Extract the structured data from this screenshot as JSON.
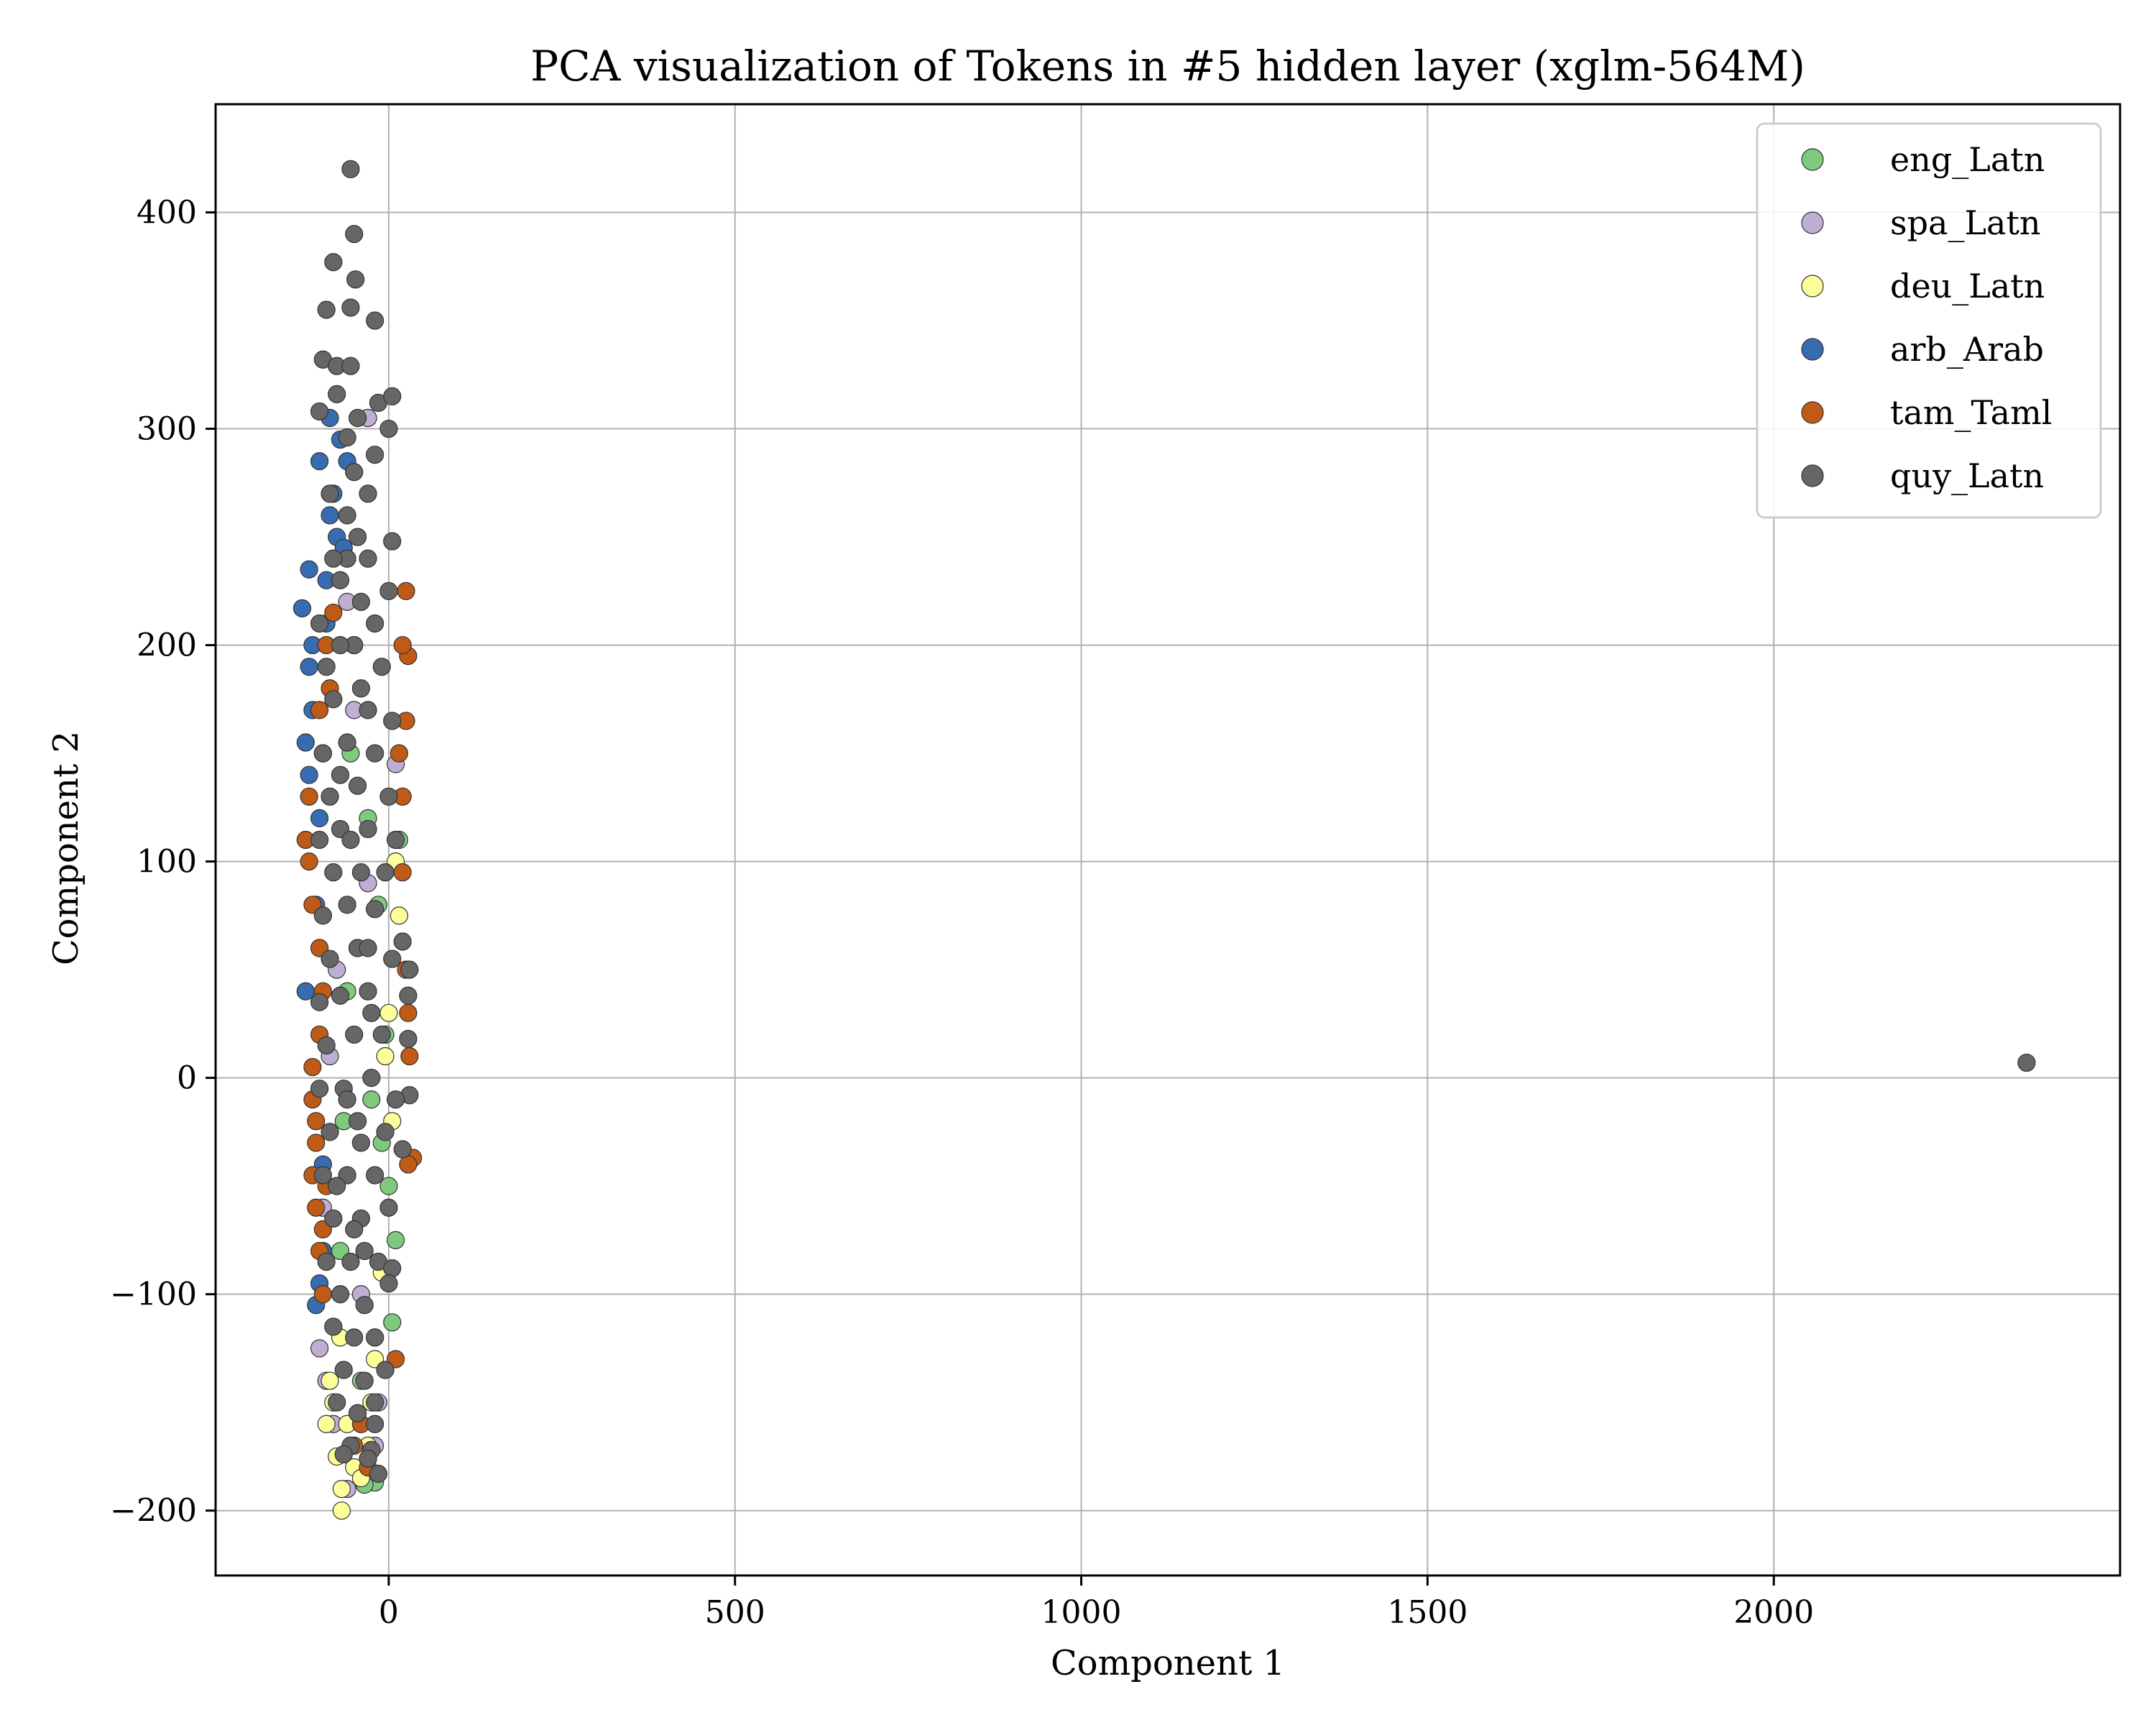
{
  "chart_data": {
    "type": "scatter",
    "title": "PCA visualization of Tokens in #5 hidden layer (xglm-564M)",
    "xlabel": "Component 1",
    "ylabel": "Component 2",
    "xlim": [
      -250,
      2500
    ],
    "ylim": [
      -230,
      450
    ],
    "x_ticks": [
      0,
      500,
      1000,
      1500,
      2000
    ],
    "y_ticks": [
      -200,
      -100,
      0,
      100,
      200,
      300,
      400
    ],
    "x_tick_labels": [
      "0",
      "500",
      "1000",
      "1500",
      "2000"
    ],
    "y_tick_labels": [
      "−200",
      "−100",
      "0",
      "100",
      "200",
      "300",
      "400"
    ],
    "grid": true,
    "legend_position": "top-right",
    "series": [
      {
        "name": "eng_Latn",
        "color": "#7fc97f",
        "points": [
          [
            -40,
            -140
          ],
          [
            -20,
            -187
          ],
          [
            -35,
            -188
          ],
          [
            5,
            -113
          ],
          [
            15,
            110
          ],
          [
            10,
            -75
          ],
          [
            0,
            -50
          ],
          [
            -10,
            -30
          ],
          [
            -60,
            40
          ],
          [
            -30,
            120
          ],
          [
            -50,
            200
          ],
          [
            -70,
            -80
          ],
          [
            -25,
            -10
          ],
          [
            -45,
            60
          ],
          [
            -5,
            20
          ],
          [
            -30,
            305
          ],
          [
            -55,
            150
          ],
          [
            -20,
            -120
          ],
          [
            -65,
            -20
          ],
          [
            -15,
            80
          ]
        ]
      },
      {
        "name": "spa_Latn",
        "color": "#beaed4",
        "points": [
          [
            -100,
            -125
          ],
          [
            -80,
            -160
          ],
          [
            -60,
            -190
          ],
          [
            10,
            145
          ],
          [
            -30,
            305
          ],
          [
            -90,
            -140
          ],
          [
            -20,
            -170
          ],
          [
            -75,
            50
          ],
          [
            -40,
            -100
          ],
          [
            -50,
            170
          ],
          [
            -85,
            10
          ],
          [
            -15,
            -150
          ],
          [
            -95,
            -60
          ],
          [
            -30,
            90
          ],
          [
            -60,
            220
          ]
        ]
      },
      {
        "name": "deu_Latn",
        "color": "#fdfd99",
        "points": [
          [
            -68,
            -200
          ],
          [
            -68,
            -190
          ],
          [
            -75,
            -175
          ],
          [
            -80,
            -150
          ],
          [
            -50,
            -180
          ],
          [
            -30,
            -170
          ],
          [
            -90,
            -160
          ],
          [
            15,
            75
          ],
          [
            10,
            100
          ],
          [
            -20,
            -130
          ],
          [
            -60,
            -160
          ],
          [
            -85,
            -140
          ],
          [
            -40,
            -185
          ],
          [
            -25,
            -150
          ],
          [
            0,
            30
          ],
          [
            -10,
            -90
          ],
          [
            -70,
            -120
          ],
          [
            -55,
            -170
          ],
          [
            -5,
            10
          ],
          [
            5,
            -20
          ]
        ]
      },
      {
        "name": "arb_Arab",
        "color": "#386cb0",
        "points": [
          [
            -125,
            217
          ],
          [
            -115,
            235
          ],
          [
            -100,
            285
          ],
          [
            -85,
            305
          ],
          [
            -70,
            295
          ],
          [
            -110,
            200
          ],
          [
            -120,
            155
          ],
          [
            -105,
            -105
          ],
          [
            -95,
            -80
          ],
          [
            -60,
            285
          ],
          [
            -80,
            270
          ],
          [
            -115,
            190
          ],
          [
            -100,
            120
          ],
          [
            -90,
            230
          ],
          [
            -75,
            250
          ],
          [
            -110,
            170
          ],
          [
            -95,
            -40
          ],
          [
            -120,
            40
          ],
          [
            -105,
            80
          ],
          [
            -85,
            260
          ],
          [
            -65,
            245
          ],
          [
            -100,
            -95
          ],
          [
            -115,
            140
          ],
          [
            -90,
            210
          ],
          [
            -100,
            60
          ]
        ]
      },
      {
        "name": "tam_Taml",
        "color": "#bf5b17",
        "points": [
          [
            -115,
            130
          ],
          [
            -120,
            110
          ],
          [
            -115,
            100
          ],
          [
            -110,
            -10
          ],
          [
            -105,
            -20
          ],
          [
            -110,
            -45
          ],
          [
            -105,
            -60
          ],
          [
            -100,
            -80
          ],
          [
            -95,
            -100
          ],
          [
            -100,
            20
          ],
          [
            -95,
            40
          ],
          [
            -90,
            200
          ],
          [
            -80,
            215
          ],
          [
            25,
            225
          ],
          [
            28,
            195
          ],
          [
            25,
            165
          ],
          [
            20,
            130
          ],
          [
            20,
            95
          ],
          [
            28,
            30
          ],
          [
            30,
            10
          ],
          [
            35,
            -37
          ],
          [
            28,
            -40
          ],
          [
            -40,
            -160
          ],
          [
            -50,
            -170
          ],
          [
            -30,
            -180
          ],
          [
            -45,
            -155
          ],
          [
            -100,
            60
          ],
          [
            -110,
            80
          ],
          [
            -95,
            150
          ],
          [
            -85,
            180
          ],
          [
            -105,
            -30
          ],
          [
            -95,
            -70
          ],
          [
            20,
            200
          ],
          [
            15,
            150
          ],
          [
            10,
            -130
          ],
          [
            25,
            50
          ],
          [
            -110,
            5
          ],
          [
            -90,
            -50
          ],
          [
            -100,
            170
          ]
        ]
      },
      {
        "name": "quy_Latn",
        "color": "#666666",
        "points": [
          [
            -55,
            420
          ],
          [
            -50,
            390
          ],
          [
            -80,
            377
          ],
          [
            -48,
            369
          ],
          [
            -90,
            355
          ],
          [
            -55,
            356
          ],
          [
            -20,
            350
          ],
          [
            -95,
            332
          ],
          [
            -75,
            329
          ],
          [
            -55,
            329
          ],
          [
            -75,
            316
          ],
          [
            -15,
            312
          ],
          [
            5,
            315
          ],
          [
            -100,
            308
          ],
          [
            -45,
            305
          ],
          [
            0,
            300
          ],
          [
            -60,
            296
          ],
          [
            -85,
            270
          ],
          [
            -20,
            288
          ],
          [
            -60,
            260
          ],
          [
            5,
            248
          ],
          [
            -30,
            240
          ],
          [
            -70,
            230
          ],
          [
            -100,
            210
          ],
          [
            -40,
            220
          ],
          [
            0,
            225
          ],
          [
            -90,
            190
          ],
          [
            -50,
            200
          ],
          [
            -10,
            190
          ],
          [
            -80,
            175
          ],
          [
            -30,
            170
          ],
          [
            5,
            165
          ],
          [
            -95,
            150
          ],
          [
            -60,
            155
          ],
          [
            -20,
            150
          ],
          [
            -85,
            130
          ],
          [
            -45,
            135
          ],
          [
            0,
            130
          ],
          [
            -100,
            110
          ],
          [
            -70,
            115
          ],
          [
            -30,
            115
          ],
          [
            10,
            110
          ],
          [
            -80,
            95
          ],
          [
            -40,
            95
          ],
          [
            -5,
            95
          ],
          [
            -95,
            75
          ],
          [
            -60,
            80
          ],
          [
            -20,
            78
          ],
          [
            20,
            63
          ],
          [
            30,
            50
          ],
          [
            28,
            38
          ],
          [
            -85,
            55
          ],
          [
            -45,
            60
          ],
          [
            5,
            55
          ],
          [
            -100,
            35
          ],
          [
            -70,
            38
          ],
          [
            -30,
            40
          ],
          [
            28,
            18
          ],
          [
            -90,
            15
          ],
          [
            -50,
            20
          ],
          [
            -10,
            20
          ],
          [
            30,
            -8
          ],
          [
            -100,
            -5
          ],
          [
            -65,
            -5
          ],
          [
            -25,
            0
          ],
          [
            10,
            -10
          ],
          [
            -85,
            -25
          ],
          [
            -45,
            -20
          ],
          [
            -5,
            -25
          ],
          [
            20,
            -33
          ],
          [
            -95,
            -45
          ],
          [
            -60,
            -45
          ],
          [
            -20,
            -45
          ],
          [
            -80,
            -65
          ],
          [
            -40,
            -65
          ],
          [
            0,
            -60
          ],
          [
            -90,
            -85
          ],
          [
            -55,
            -85
          ],
          [
            -15,
            -85
          ],
          [
            5,
            -88
          ],
          [
            -70,
            -100
          ],
          [
            -35,
            -105
          ],
          [
            0,
            -95
          ],
          [
            -80,
            -115
          ],
          [
            -50,
            -120
          ],
          [
            -20,
            -120
          ],
          [
            -65,
            -135
          ],
          [
            -35,
            -140
          ],
          [
            -5,
            -135
          ],
          [
            -75,
            -150
          ],
          [
            -45,
            -155
          ],
          [
            -20,
            -160
          ],
          [
            -55,
            -170
          ],
          [
            -25,
            -172
          ],
          [
            -65,
            -174
          ],
          [
            -30,
            -176
          ],
          [
            -15,
            -183
          ],
          [
            -20,
            -150
          ],
          [
            -50,
            -70
          ],
          [
            -60,
            -10
          ],
          [
            -40,
            -30
          ],
          [
            -30,
            60
          ],
          [
            -70,
            140
          ],
          [
            -40,
            180
          ],
          [
            -60,
            240
          ],
          [
            -30,
            270
          ],
          [
            -50,
            280
          ],
          [
            -80,
            240
          ],
          [
            -70,
            200
          ],
          [
            -20,
            210
          ],
          [
            -45,
            250
          ],
          [
            -55,
            110
          ],
          [
            -25,
            30
          ],
          [
            -75,
            -50
          ],
          [
            -35,
            -80
          ]
        ]
      }
    ],
    "outlier_point": {
      "x": 2365,
      "y": 7
    }
  }
}
